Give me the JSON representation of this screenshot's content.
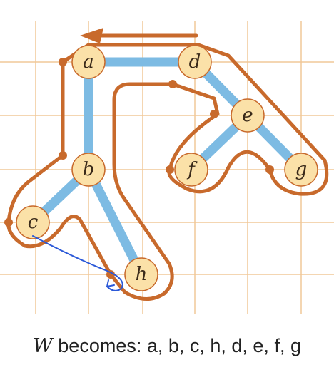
{
  "diagram": {
    "nodes": [
      {
        "id": "a",
        "label": "a"
      },
      {
        "id": "b",
        "label": "b"
      },
      {
        "id": "c",
        "label": "c"
      },
      {
        "id": "d",
        "label": "d"
      },
      {
        "id": "e",
        "label": "e"
      },
      {
        "id": "f",
        "label": "f"
      },
      {
        "id": "g",
        "label": "g"
      },
      {
        "id": "h",
        "label": "h"
      }
    ],
    "edges": [
      {
        "from": "a",
        "to": "b"
      },
      {
        "from": "a",
        "to": "d"
      },
      {
        "from": "b",
        "to": "c"
      },
      {
        "from": "b",
        "to": "h"
      },
      {
        "from": "d",
        "to": "e"
      },
      {
        "from": "e",
        "to": "f"
      },
      {
        "from": "e",
        "to": "g"
      }
    ],
    "colors": {
      "grid": "#f1c898",
      "tree_edge": "#7dbbe3",
      "tour_path": "#c86a2c",
      "node_fill": "#fbe1a8",
      "node_stroke": "#c86a2c",
      "shortcut_arrow": "#2b59d8"
    }
  },
  "caption": {
    "variable": "W",
    "text": " becomes: a, b, c, h, d, e, f, g"
  }
}
